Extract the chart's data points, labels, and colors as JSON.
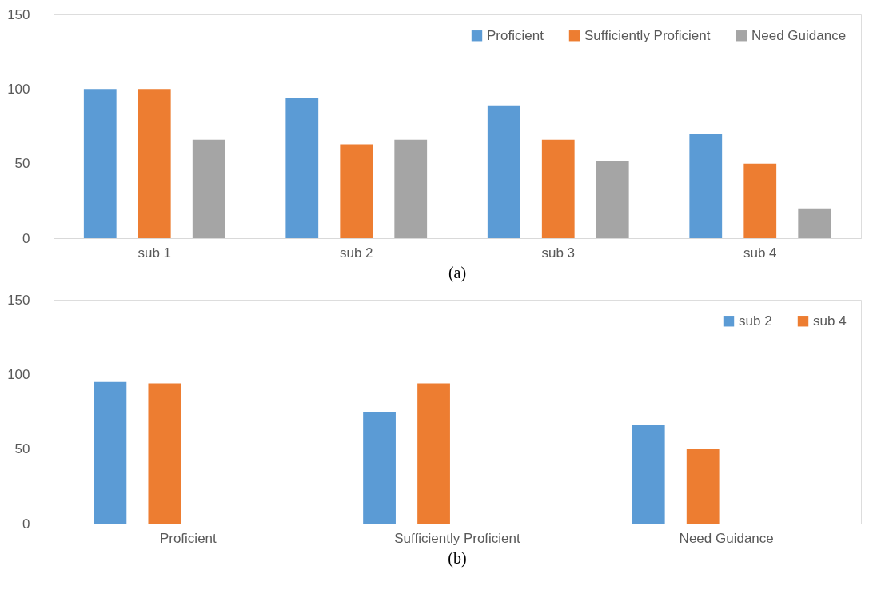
{
  "chart_data": [
    {
      "type": "bar",
      "annotations": [
        "(a)"
      ],
      "categories": [
        "sub 1",
        "sub 2",
        "sub 3",
        "sub 4"
      ],
      "ylim": [
        0,
        150
      ],
      "yticks": [
        0,
        50,
        100,
        150
      ],
      "grid": false,
      "legend": "top right",
      "series": [
        {
          "name": "Proficient",
          "color": "#5b9bd5",
          "values": [
            100,
            94,
            89,
            70
          ]
        },
        {
          "name": "Sufficiently Proficient",
          "color": "#ed7d31",
          "values": [
            100,
            63,
            66,
            50
          ]
        },
        {
          "name": "Need Guidance",
          "color": "#a5a5a5",
          "values": [
            66,
            66,
            52,
            20
          ]
        }
      ]
    },
    {
      "type": "bar",
      "annotations": [
        "(b)"
      ],
      "categories": [
        "Proficient",
        "Sufficiently Proficient",
        "Need Guidance"
      ],
      "ylim": [
        0,
        150
      ],
      "yticks": [
        0,
        50,
        100,
        150
      ],
      "grid": false,
      "legend": "top right",
      "series": [
        {
          "name": "sub 2",
          "color": "#5b9bd5",
          "values": [
            95,
            75,
            66
          ]
        },
        {
          "name": "sub 4",
          "color": "#ed7d31",
          "values": [
            94,
            94,
            50
          ]
        }
      ]
    }
  ]
}
